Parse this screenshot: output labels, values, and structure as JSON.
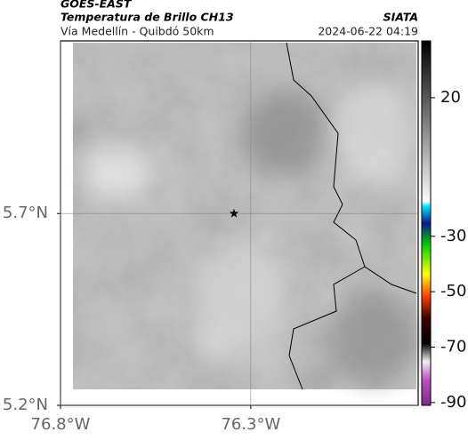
{
  "chart_data": {
    "type": "map",
    "title": "GOES-EAST",
    "subtitle": "Temperatura de Brillo CH13",
    "location": "Vía Medellín - Quibdó 50km",
    "source": "SIATA",
    "timestamp": "2024-06-22 04:19",
    "xlim": [
      -76.8,
      -75.86
    ],
    "ylim": [
      5.2,
      6.15
    ],
    "xticks": [
      {
        "value": -76.8,
        "label": "76.8°W"
      },
      {
        "value": -76.3,
        "label": "76.3°W"
      }
    ],
    "yticks": [
      {
        "value": 5.2,
        "label": "5.2°N"
      },
      {
        "value": 5.7,
        "label": "5.7°N"
      }
    ],
    "grid": true,
    "marker": {
      "lon": -76.344,
      "lat": 5.7
    },
    "clim": [
      -91,
      40.5
    ],
    "cticks": [
      20,
      -30,
      -50,
      -70,
      -90
    ]
  }
}
